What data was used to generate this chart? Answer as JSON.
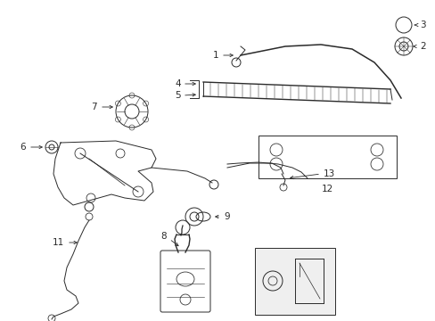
{
  "bg_color": "#ffffff",
  "line_color": "#2a2a2a",
  "fig_width": 4.89,
  "fig_height": 3.6,
  "dpi": 100,
  "label_fs": 7.5
}
